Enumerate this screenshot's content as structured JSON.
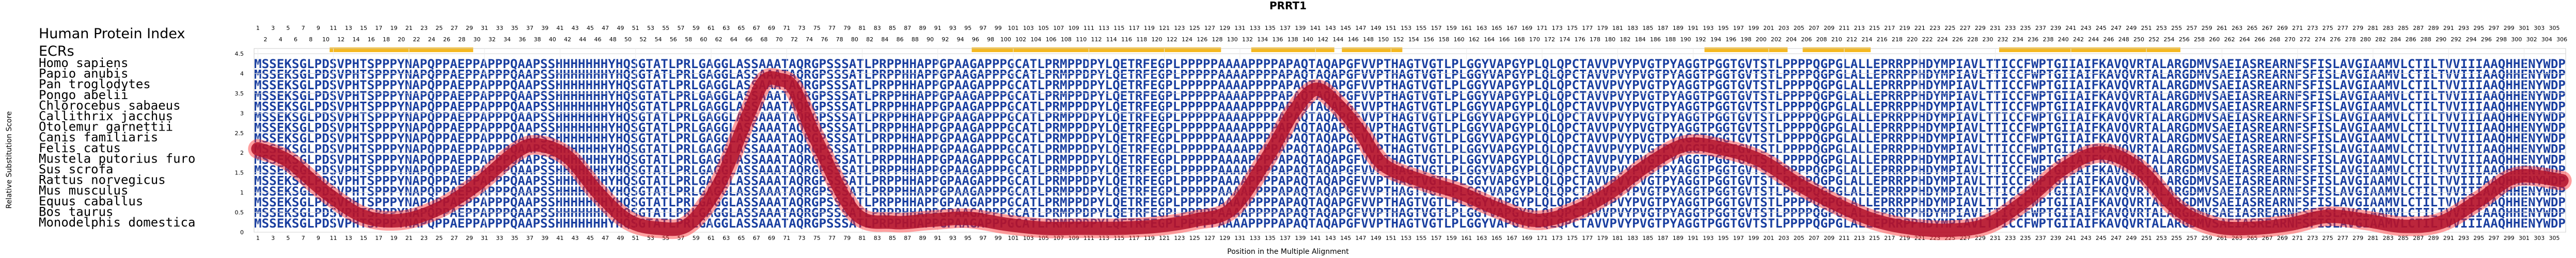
{
  "chart_data": {
    "type": "line",
    "title": "PRRT1",
    "header_label": "Human Protein Index",
    "ecr_label": "ECRs",
    "xlabel": "Position in the Multiple Alignment",
    "ylabel": "Relative Substitution Score",
    "ylim": [
      0,
      4.5
    ],
    "yticks": [
      0,
      0.5,
      1,
      1.5,
      2,
      2.5,
      3,
      3.5,
      4,
      4.5
    ],
    "xlim": [
      1,
      306
    ],
    "grid": true,
    "species": [
      "Homo sapiens",
      "Papio anubis",
      "Pan troglodytes",
      "Pongo abelii",
      "Chlorocebus sabaeus",
      "Callithrix jacchus",
      "Otolemur garnettii",
      "Canis familiaris",
      "Felis catus",
      "Mustela putorius furo",
      "Sus scrofa",
      "Rattus norvegicus",
      "Mus musculus",
      "Equus caballus",
      "Bos taurus",
      "Monodelphis domestica"
    ],
    "sequence_human": "MSSEKSGLPDSVPHTSPPPYNAPQPPAEPPAPPPQAAPSSHHHHHHHYHQSGTATLPRLGAGGLASSAAATAQRGPSSSATLPRPPHHAPPGPAAGAPPPGCATLPRMPPDPYLQETRFEGPLPPPPPAAAAPPPPAPAQTAQAPGFVVPTHAGTVGTLPLGGYVAPGYPLQLQPCTAVVPVYPVGTPYAGGTPGGTGVTSTLPPPPQGPGLALLEPRRPPHDYMPIAVLTTICCFWPTGIIAIFKAVQVRTALARGDMVSAEIASREARNFSFISLAVGIAAMVLCTILTVVIIIAAQHHENYWDP",
    "sequence_other": "MSSEKSGLPDSVPHTSPPPYNAPQPPAEPPAPPPQAAPSSHHHHHHHYHQSGTATLPRLGAGGLASSAAATAQRGPSSSATLPRPPHHAPPGPAAGAPPPGCATLPRMPPDPYLQETRFEGPLPPPPPAAAAPPPPAPAQTAQAPGFVVPTHAGTVGTLPLGGYVAPGYPLQLQPCTAVVPVYPVGTPYAGGTPGGTGVTSTLPPPPQGPGLALLEPRRPPHDYMPIAVLTTICCFWPTGIIAIFKAVQVRTALARGDMVSAEIASREARNFSFISLAVGIAAMVLCTILTVVIIIAAQHHENYWDP",
    "ecr_regions": [
      [
        11,
        29
      ],
      [
        96,
        128
      ],
      [
        133,
        143
      ],
      [
        145,
        152
      ],
      [
        193,
        203
      ],
      [
        206,
        214
      ],
      [
        232,
        255
      ]
    ],
    "series": [
      {
        "x": [
          1,
          5,
          10,
          15,
          20,
          25,
          30,
          35,
          38,
          42,
          46,
          50,
          54,
          58,
          62,
          66,
          68,
          70,
          72,
          75,
          80,
          85,
          90,
          95,
          100,
          105,
          110,
          115,
          120,
          125,
          130,
          135,
          138,
          141,
          144,
          147,
          150,
          155,
          160,
          165,
          170,
          175,
          180,
          185,
          190,
          195,
          200,
          205,
          210,
          215,
          220,
          225,
          230,
          235,
          240,
          245,
          250,
          255,
          260,
          265,
          270,
          275,
          280,
          285,
          290,
          295,
          300,
          306
        ],
        "values": [
          2.1,
          1.8,
          1.0,
          0.4,
          0.3,
          0.6,
          1.2,
          2.0,
          2.2,
          1.9,
          1.0,
          0.3,
          0.1,
          0.2,
          1.2,
          3.0,
          3.8,
          3.85,
          3.6,
          2.3,
          0.5,
          0.25,
          0.3,
          0.35,
          0.2,
          0.1,
          0.1,
          0.1,
          0.15,
          0.3,
          0.6,
          2.0,
          3.0,
          3.6,
          3.2,
          2.5,
          1.7,
          1.3,
          1.0,
          0.6,
          0.3,
          0.5,
          1.0,
          1.7,
          2.2,
          2.1,
          1.8,
          1.2,
          0.7,
          0.3,
          0.1,
          0.05,
          0.2,
          0.8,
          1.6,
          2.0,
          1.6,
          0.6,
          0.15,
          0.1,
          0.2,
          0.4,
          0.3,
          0.15,
          0.25,
          0.8,
          1.4,
          1.3
        ]
      }
    ]
  },
  "colors": {
    "line": "#b0102a",
    "line_glow": "#ff2a2a",
    "ecr_bar": "#f5b820",
    "residue": "#1a3fa0",
    "residue_dim": "#9fb3df",
    "grid": "#d5d5d5"
  }
}
